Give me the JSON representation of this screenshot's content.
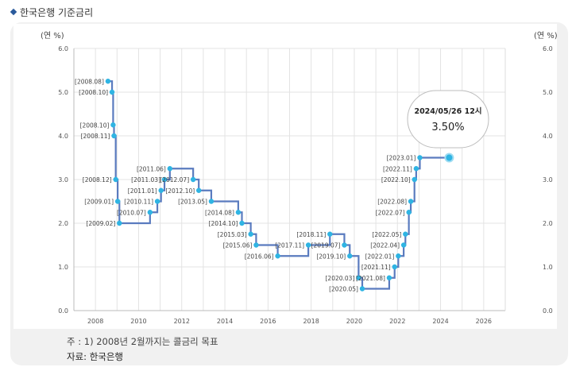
{
  "header": {
    "title": "한국은행 기준금리"
  },
  "footnote": "주 : 1) 2008년 2월까지는 콜금리 목표",
  "source": "자료: 한국은행",
  "colors": {
    "line": "#5a7bbf",
    "point": "#2fb4e3",
    "accent_diamond": "#2a5a9c",
    "grid": "#e3e3e3"
  },
  "tooltip": {
    "date": "2024/05/26 12시",
    "value": "3.50%"
  },
  "chart_data": {
    "type": "line",
    "step": true,
    "unit_left": "(연 %)",
    "unit_right": "(연 %)",
    "xlim": [
      2007,
      2027
    ],
    "ylim": [
      0,
      6
    ],
    "x_ticks": [
      "2008",
      "2010",
      "2012",
      "2014",
      "2016",
      "2018",
      "2020",
      "2022",
      "2024",
      "2026"
    ],
    "y_ticks": [
      "0.0",
      "1.0",
      "2.0",
      "3.0",
      "4.0",
      "5.0",
      "6.0"
    ],
    "grid": true,
    "points": [
      {
        "label": "[2008.08]",
        "x": 2008.58,
        "y": 5.25
      },
      {
        "label": "[2008.10]",
        "x": 2008.77,
        "y": 5.0
      },
      {
        "label": "[2008.10]",
        "x": 2008.82,
        "y": 4.25
      },
      {
        "label": "[2008.11]",
        "x": 2008.86,
        "y": 4.0
      },
      {
        "label": "[2008.12]",
        "x": 2008.94,
        "y": 3.0
      },
      {
        "label": "[2009.01]",
        "x": 2009.03,
        "y": 2.5
      },
      {
        "label": "[2009.02]",
        "x": 2009.11,
        "y": 2.0
      },
      {
        "label": "[2010.07]",
        "x": 2010.53,
        "y": 2.25
      },
      {
        "label": "[2010.11]",
        "x": 2010.87,
        "y": 2.5
      },
      {
        "label": "[2011.01]",
        "x": 2011.04,
        "y": 2.75
      },
      {
        "label": "[2011.03]",
        "x": 2011.2,
        "y": 3.0
      },
      {
        "label": "[2011.06]",
        "x": 2011.45,
        "y": 3.25
      },
      {
        "label": "[2012.07]",
        "x": 2012.53,
        "y": 3.0
      },
      {
        "label": "[2012.10]",
        "x": 2012.79,
        "y": 2.75
      },
      {
        "label": "[2013.05]",
        "x": 2013.37,
        "y": 2.5
      },
      {
        "label": "[2014.08]",
        "x": 2014.62,
        "y": 2.25
      },
      {
        "label": "[2014.10]",
        "x": 2014.79,
        "y": 2.0
      },
      {
        "label": "[2015.03]",
        "x": 2015.2,
        "y": 1.75
      },
      {
        "label": "[2015.06]",
        "x": 2015.45,
        "y": 1.5
      },
      {
        "label": "[2016.06]",
        "x": 2016.45,
        "y": 1.25
      },
      {
        "label": "[2017.11]",
        "x": 2017.87,
        "y": 1.5
      },
      {
        "label": "[2018.11]",
        "x": 2018.87,
        "y": 1.75
      },
      {
        "label": "[2019.07]",
        "x": 2019.54,
        "y": 1.5
      },
      {
        "label": "[2019.10]",
        "x": 2019.79,
        "y": 1.25
      },
      {
        "label": "[2020.03]",
        "x": 2020.2,
        "y": 0.75
      },
      {
        "label": "[2020.05]",
        "x": 2020.37,
        "y": 0.5
      },
      {
        "label": "[2021.08]",
        "x": 2021.62,
        "y": 0.75
      },
      {
        "label": "[2021.11]",
        "x": 2021.87,
        "y": 1.0
      },
      {
        "label": "[2022.01]",
        "x": 2022.04,
        "y": 1.25
      },
      {
        "label": "[2022.04]",
        "x": 2022.29,
        "y": 1.5
      },
      {
        "label": "[2022.05]",
        "x": 2022.37,
        "y": 1.75
      },
      {
        "label": "[2022.07]",
        "x": 2022.53,
        "y": 2.25
      },
      {
        "label": "[2022.08]",
        "x": 2022.62,
        "y": 2.5
      },
      {
        "label": "[2022.10]",
        "x": 2022.79,
        "y": 3.0
      },
      {
        "label": "[2022.11]",
        "x": 2022.87,
        "y": 3.25
      },
      {
        "label": "[2023.01]",
        "x": 2023.04,
        "y": 3.5
      }
    ],
    "end_point": {
      "x": 2024.4,
      "y": 3.5
    }
  }
}
